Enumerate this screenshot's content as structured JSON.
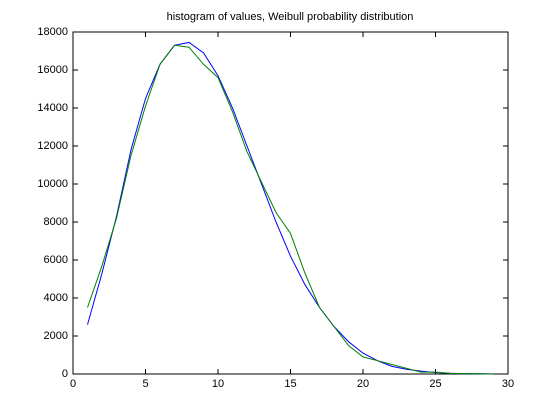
{
  "chart_data": {
    "type": "line",
    "title": "histogram of values, Weibull probability distribution",
    "x": [
      1,
      2,
      3,
      4,
      5,
      6,
      7,
      8,
      9,
      10,
      11,
      12,
      13,
      14,
      15,
      16,
      17,
      18,
      19,
      20,
      21,
      22,
      23,
      24,
      25,
      26,
      27,
      28,
      29
    ],
    "series": [
      {
        "color": "#0000ff",
        "values": [
          2600,
          5300,
          8300,
          11800,
          14500,
          16300,
          17300,
          17450,
          16900,
          15700,
          14000,
          12000,
          10000,
          8000,
          6200,
          4700,
          3500,
          2500,
          1700,
          1100,
          700,
          400,
          250,
          150,
          80,
          40,
          20,
          10,
          5
        ]
      },
      {
        "color": "#008000",
        "values": [
          3500,
          5700,
          8200,
          11500,
          14100,
          16300,
          17300,
          17200,
          16300,
          15600,
          13800,
          11700,
          10100,
          8500,
          7400,
          5300,
          3500,
          2500,
          1500,
          900,
          700,
          500,
          300,
          100,
          100,
          30,
          20,
          10,
          0
        ]
      }
    ],
    "xlim": [
      0,
      30
    ],
    "xticks": [
      0,
      5,
      10,
      15,
      20,
      25,
      30
    ],
    "ylim": [
      0,
      18000
    ],
    "yticks": [
      0,
      2000,
      4000,
      6000,
      8000,
      10000,
      12000,
      14000,
      16000,
      18000
    ],
    "grid": false
  }
}
